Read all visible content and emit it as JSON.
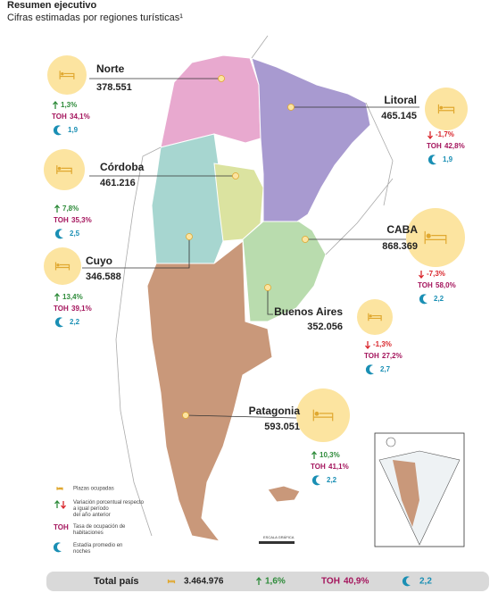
{
  "header": {
    "title": "Resumen ejecutivo",
    "subtitle": "Cifras estimadas por regiones turísticas¹"
  },
  "labels": {
    "toh": "TOH",
    "scale": "ESCALA GRÁFICA"
  },
  "regions": [
    {
      "name": "Norte",
      "value": "378.551",
      "variation": "1,3%",
      "toh": "34,1%",
      "stay": "1,9"
    },
    {
      "name": "Córdoba",
      "value": "461.216",
      "variation": "7,8%",
      "toh": "35,3%",
      "stay": "2,5"
    },
    {
      "name": "Cuyo",
      "value": "346.588",
      "variation": "13,4%",
      "toh": "39,1%",
      "stay": "2,2"
    },
    {
      "name": "Litoral",
      "value": "465.145",
      "variation": "-1,7%",
      "toh": "42,8%",
      "stay": "1,9"
    },
    {
      "name": "CABA",
      "value": "868.369",
      "variation": "-7,3%",
      "toh": "58,0%",
      "stay": "2,2"
    },
    {
      "name": "Buenos Aires",
      "value": "352.056",
      "variation": "-1,3%",
      "toh": "27,2%",
      "stay": "2,7"
    },
    {
      "name": "Patagonia",
      "value": "593.051",
      "variation": "10,3%",
      "toh": "41,1%",
      "stay": "2,2"
    }
  ],
  "legend": {
    "beds": "Plazas ocupadas",
    "variation": "Variación porcentual respecto a igual período del año anterior",
    "toh": "Tasa de ocupación de habitaciones",
    "stay": "Estadía promedio en noches"
  },
  "total": {
    "label": "Total país",
    "value": "3.464.976",
    "variation": "1,6%",
    "toh": "40,9%",
    "stay": "2,2"
  }
}
